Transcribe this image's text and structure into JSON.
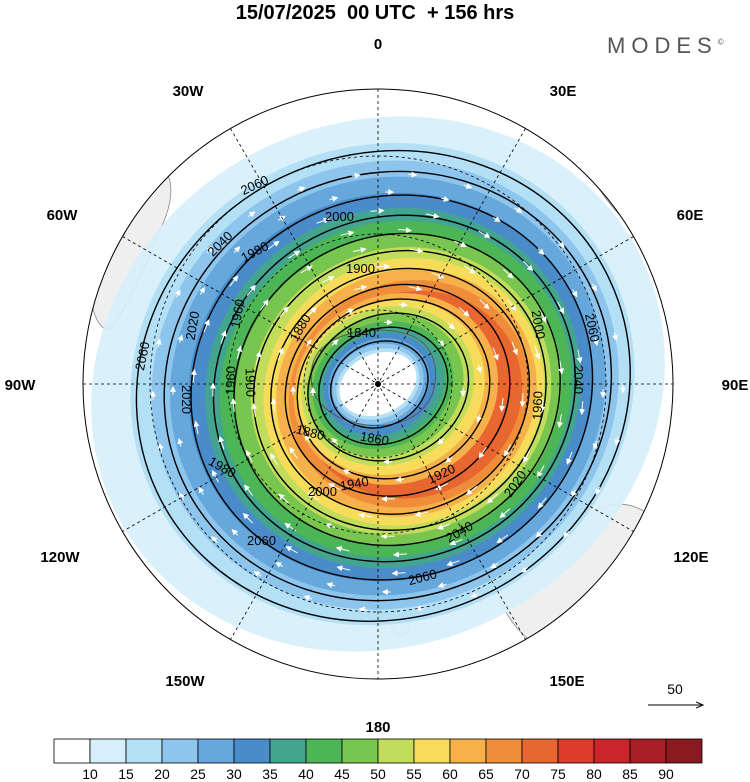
{
  "header": {
    "title": "15/07/2025  00 UTC  + 156 hrs",
    "brand": "MODES",
    "brand_mark": "©"
  },
  "map": {
    "projection": "south polar stereographic",
    "longitude_labels": [
      "0",
      "30E",
      "60E",
      "90E",
      "120E",
      "150E",
      "180",
      "150W",
      "120W",
      "90W",
      "60W",
      "30W"
    ],
    "contour_labels": [
      "2060",
      "2040",
      "2020",
      "2000",
      "1980",
      "1960",
      "1940",
      "1920",
      "1900",
      "1880",
      "1860",
      "1840"
    ],
    "contour_unit_values": [
      2060,
      2040,
      2020,
      2000,
      1980,
      1960,
      1940,
      1920,
      1900,
      1880,
      1860,
      1840
    ],
    "jet_max_direction": "southeast of pole (between 120E and 180)",
    "arrows": "white wind vectors, clockwise circulation"
  },
  "reference_vector": {
    "value": "50"
  },
  "colorbar": {
    "labels": [
      "10",
      "15",
      "20",
      "25",
      "30",
      "35",
      "40",
      "45",
      "50",
      "55",
      "60",
      "65",
      "70",
      "75",
      "80",
      "85",
      "90"
    ],
    "colors": [
      "#ffffff",
      "#d6effb",
      "#b4e0f6",
      "#8ec5ec",
      "#66a7dc",
      "#4a8cca",
      "#43a58f",
      "#4cb556",
      "#78c550",
      "#c1dd5b",
      "#f7dc5c",
      "#f6b14a",
      "#f08d3a",
      "#e8662f",
      "#dd3b2b",
      "#c9252a",
      "#a81e26",
      "#8a1a1f"
    ]
  }
}
